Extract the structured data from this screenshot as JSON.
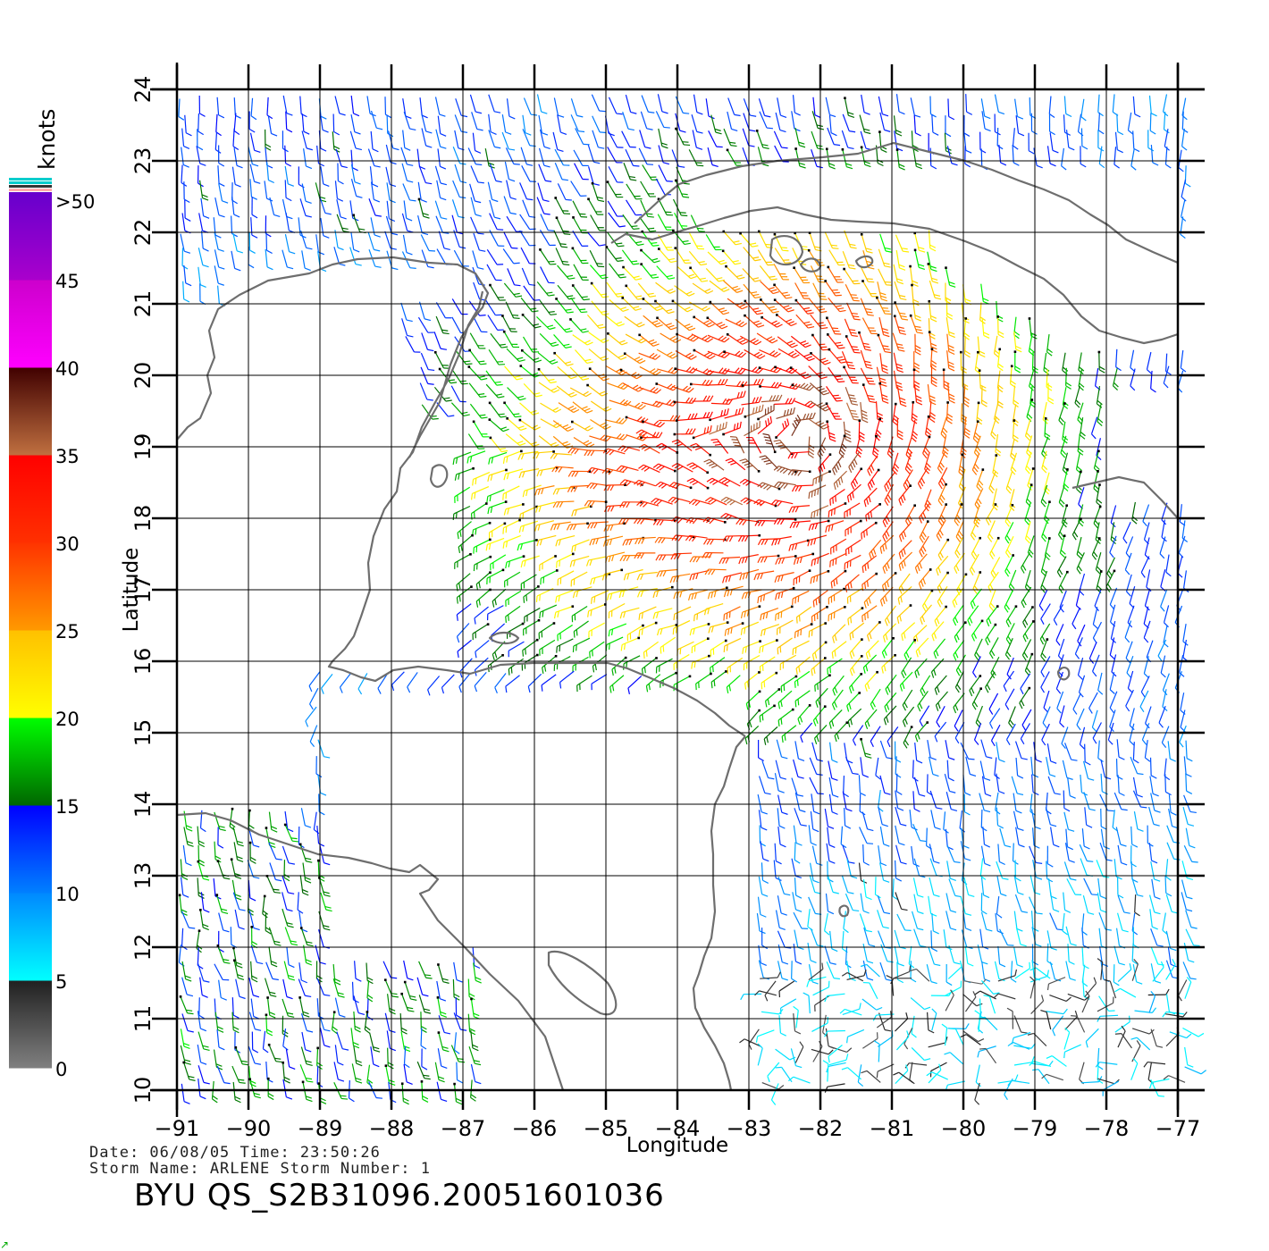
{
  "map": {
    "x_axis_label": "Longitude",
    "y_axis_label": "Latitude",
    "lon_ticks": [
      -91,
      -90,
      -89,
      -88,
      -87,
      -86,
      -85,
      -84,
      -83,
      -82,
      -81,
      -80,
      -79,
      -78,
      -77
    ],
    "lat_ticks": [
      10,
      11,
      12,
      13,
      14,
      15,
      16,
      17,
      18,
      19,
      20,
      21,
      22,
      23,
      24
    ],
    "lon_range": [
      -91,
      -77
    ],
    "lat_range": [
      10,
      24
    ],
    "grid": true,
    "land_outline_color": "#6e6e6e"
  },
  "colorbar": {
    "unit_label": "knots",
    "tick_labels": [
      "0",
      "5",
      "10",
      "15",
      "20",
      "25",
      "30",
      "35",
      "40",
      "45",
      ">50"
    ],
    "bands": [
      {
        "from": 0,
        "to": 5,
        "colors": [
          "#808080",
          "#202020"
        ]
      },
      {
        "from": 5,
        "to": 10,
        "colors": [
          "#00ffff",
          "#0088ff"
        ]
      },
      {
        "from": 10,
        "to": 15,
        "colors": [
          "#0080ff",
          "#0000ff"
        ]
      },
      {
        "from": 15,
        "to": 20,
        "colors": [
          "#006600",
          "#00ff00"
        ]
      },
      {
        "from": 20,
        "to": 25,
        "colors": [
          "#ffff00",
          "#ffc000"
        ]
      },
      {
        "from": 25,
        "to": 30,
        "colors": [
          "#ff9900",
          "#ff3300"
        ]
      },
      {
        "from": 30,
        "to": 35,
        "colors": [
          "#ff3000",
          "#ff0000"
        ]
      },
      {
        "from": 35,
        "to": 40,
        "colors": [
          "#c07040",
          "#400000"
        ]
      },
      {
        "from": 40,
        "to": 45,
        "colors": [
          "#ff00ff",
          "#cc00cc"
        ]
      },
      {
        "from": 45,
        "to": 50,
        "colors": [
          "#aa00cc",
          "#6600cc"
        ]
      }
    ],
    "cap_colors": [
      "#ffaaaa",
      "#333333",
      "#00cccc",
      "#00cccc"
    ]
  },
  "info": {
    "date_line": "Date: 06/08/05   Time: 23:50:26",
    "storm_line": "Storm Name: ARLENE   Storm Number: 1",
    "product_id": "BYU QS_S2B31096.20051601036"
  }
}
